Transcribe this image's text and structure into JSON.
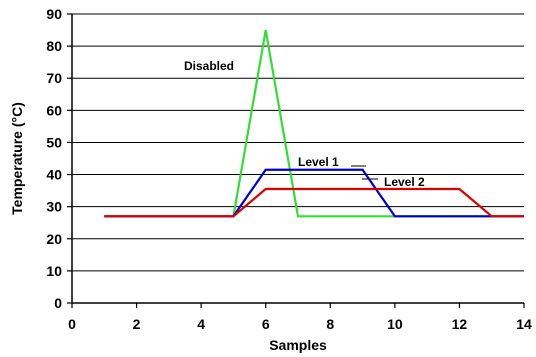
{
  "chart_data": {
    "type": "line",
    "xlabel": "Samples",
    "ylabel": "Temperature (°C)",
    "xlim": [
      0,
      14
    ],
    "ylim": [
      0,
      90
    ],
    "xticks": [
      0,
      2,
      4,
      6,
      8,
      10,
      12,
      14
    ],
    "yticks": [
      0,
      10,
      20,
      30,
      40,
      50,
      60,
      70,
      80,
      90
    ],
    "grid": "horizontal",
    "series": [
      {
        "key": "disabled",
        "name": "Disabled",
        "color": "#33dd33",
        "x": [
          1,
          5,
          6,
          7,
          14
        ],
        "y": [
          27,
          27,
          85,
          27,
          27
        ]
      },
      {
        "key": "level1",
        "name": "Level 1",
        "color": "#0000cc",
        "x": [
          1,
          5,
          6,
          9,
          10,
          14
        ],
        "y": [
          27,
          27,
          41.5,
          41.5,
          27,
          27
        ]
      },
      {
        "key": "level2",
        "name": "Level 2",
        "color": "#dd0000",
        "x": [
          1,
          5,
          6,
          12,
          13,
          14
        ],
        "y": [
          27,
          27,
          35.5,
          35.5,
          27,
          27
        ]
      }
    ],
    "annotations": [
      {
        "key": "disabled",
        "text": "Disabled"
      },
      {
        "key": "level1",
        "text": "Level 1"
      },
      {
        "key": "level2",
        "text": "Level 2"
      }
    ]
  }
}
